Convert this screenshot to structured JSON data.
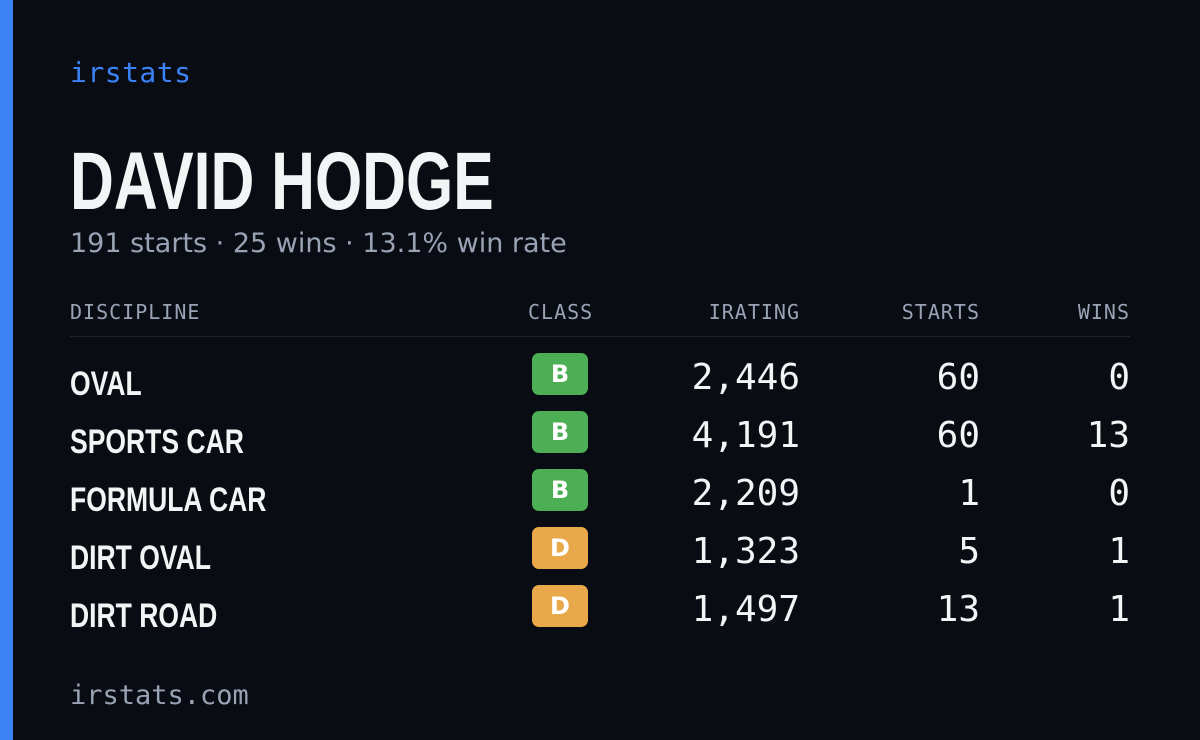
{
  "brand": "irstats",
  "driver": {
    "name": "DAVID HODGE",
    "summary": "191 starts · 25 wins · 13.1% win rate"
  },
  "table": {
    "headers": {
      "discipline": "DISCIPLINE",
      "class": "CLASS",
      "irating": "IRATING",
      "starts": "STARTS",
      "wins": "WINS"
    },
    "rows": [
      {
        "discipline": "OVAL",
        "class": "B",
        "irating": "2,446",
        "starts": "60",
        "wins": "0"
      },
      {
        "discipline": "SPORTS CAR",
        "class": "B",
        "irating": "4,191",
        "starts": "60",
        "wins": "13"
      },
      {
        "discipline": "FORMULA CAR",
        "class": "B",
        "irating": "2,209",
        "starts": "1",
        "wins": "0"
      },
      {
        "discipline": "DIRT OVAL",
        "class": "D",
        "irating": "1,323",
        "starts": "5",
        "wins": "1"
      },
      {
        "discipline": "DIRT ROAD",
        "class": "D",
        "irating": "1,497",
        "starts": "13",
        "wins": "1"
      }
    ]
  },
  "class_colors": {
    "B": "#4cae55",
    "D": "#e9a94a"
  },
  "colors": {
    "accent": "#3b82f6",
    "background": "#0a0c13"
  },
  "footer": "irstats.com"
}
